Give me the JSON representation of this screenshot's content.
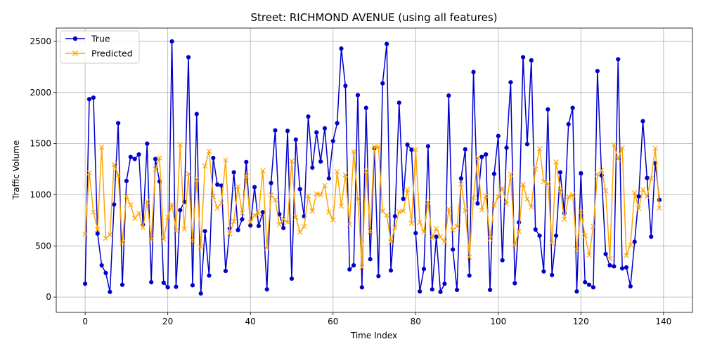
{
  "chart_data": {
    "type": "line",
    "title": "Street: RICHMOND AVENUE (using all features)",
    "xlabel": "Time Index",
    "ylabel": "Traffic Volume",
    "xlim": [
      -7,
      147
    ],
    "ylim": [
      -150,
      2630
    ],
    "xticks": [
      0,
      20,
      40,
      60,
      80,
      100,
      120,
      140
    ],
    "yticks": [
      0,
      500,
      1000,
      1500,
      2000,
      2500
    ],
    "grid": true,
    "legend_position": "upper-left",
    "series": [
      {
        "name": "True",
        "color": "#0000cc",
        "marker": "circle",
        "values": [
          130,
          1935,
          1950,
          620,
          310,
          235,
          50,
          905,
          1700,
          120,
          1135,
          1370,
          1350,
          1395,
          705,
          1500,
          145,
          1350,
          1130,
          140,
          95,
          2500,
          100,
          850,
          930,
          2345,
          115,
          1790,
          35,
          645,
          210,
          1360,
          1100,
          1090,
          255,
          670,
          1220,
          655,
          760,
          1320,
          700,
          1075,
          695,
          830,
          75,
          1115,
          1630,
          810,
          675,
          1625,
          180,
          1540,
          1055,
          790,
          1765,
          1265,
          1610,
          1325,
          1650,
          1160,
          1525,
          1700,
          2430,
          2065,
          270,
          310,
          1975,
          95,
          1850,
          370,
          1455,
          205,
          2090,
          2475,
          260,
          790,
          1900,
          960,
          1490,
          1440,
          625,
          55,
          275,
          1475,
          75,
          590,
          50,
          130,
          1970,
          465,
          70,
          1160,
          1445,
          210,
          2200,
          915,
          1370,
          1395,
          70,
          1205,
          1575,
          360,
          1460,
          2100,
          135,
          730,
          2345,
          1495,
          2315,
          660,
          600,
          250,
          1835,
          215,
          600,
          1220,
          820,
          1690,
          1850,
          55,
          1210,
          145,
          120,
          95,
          2210,
          1190,
          420,
          310,
          300,
          2325,
          280,
          290,
          105,
          540,
          985,
          1720,
          1165,
          590,
          1310,
          950
        ]
      },
      {
        "name": "Predicted",
        "color": "#ffa500",
        "marker": "x",
        "values": [
          615,
          1215,
          830,
          660,
          1465,
          575,
          610,
          1295,
          1195,
          535,
          985,
          900,
          770,
          820,
          680,
          935,
          560,
          1250,
          1360,
          565,
          780,
          905,
          650,
          1490,
          665,
          1205,
          550,
          1150,
          490,
          1280,
          1425,
          985,
          870,
          920,
          1340,
          620,
          740,
          1080,
          820,
          1180,
          730,
          800,
          815,
          1235,
          480,
          1000,
          950,
          710,
          760,
          730,
          1330,
          780,
          635,
          690,
          990,
          840,
          1010,
          1000,
          1090,
          830,
          755,
          1225,
          890,
          1195,
          710,
          1420,
          960,
          290,
          1235,
          640,
          1470,
          1470,
          840,
          800,
          540,
          680,
          835,
          840,
          1050,
          720,
          1440,
          730,
          635,
          930,
          580,
          670,
          590,
          540,
          860,
          655,
          690,
          1105,
          845,
          390,
          970,
          1360,
          850,
          990,
          570,
          900,
          980,
          1065,
          910,
          1200,
          510,
          640,
          1100,
          960,
          880,
          1250,
          1450,
          1130,
          1110,
          530,
          1320,
          1045,
          760,
          980,
          1000,
          465,
          835,
          600,
          410,
          690,
          1200,
          1240,
          1040,
          375,
          1490,
          1350,
          1460,
          405,
          510,
          1020,
          865,
          1050,
          985,
          1160,
          1455,
          870
        ]
      }
    ]
  }
}
